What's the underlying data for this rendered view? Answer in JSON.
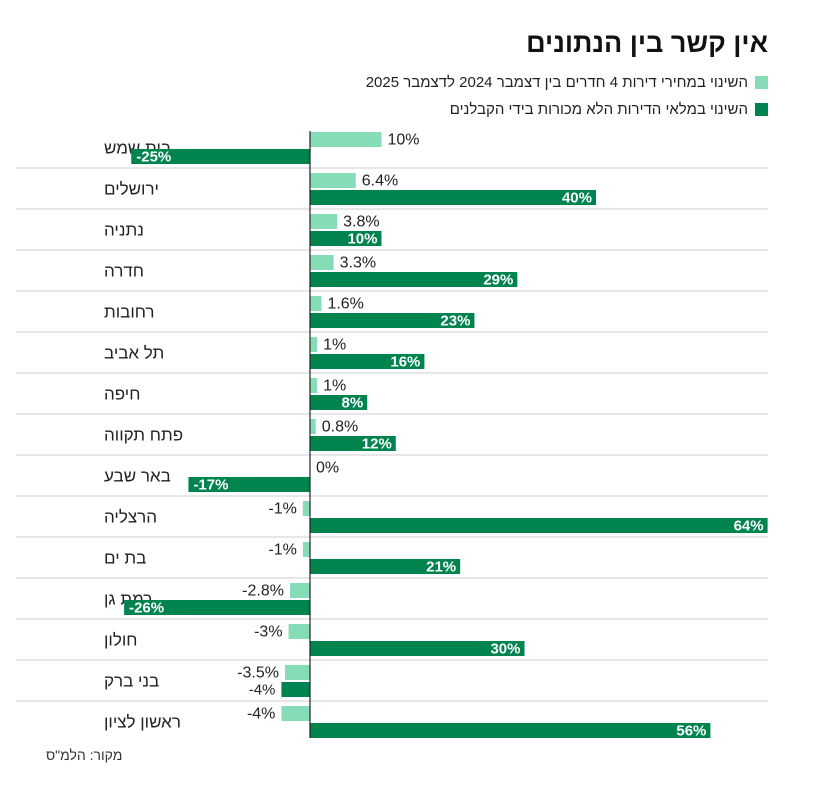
{
  "title": "אין קשר בין הנתונים",
  "legend": {
    "prices_label": "השינוי במחירי דירות 4 חדרים בין דצמבר 2024 לדצמבר 2025",
    "inventory_label": "השינוי במלאי הדירות הלא מכורות בידי הקבלנים"
  },
  "colors": {
    "prices": "#86DCB7",
    "inventory": "#00844F",
    "grid": "#CFCFCF",
    "axis": "#222222"
  },
  "source": "מקור: הלמ\"ס",
  "chart_data": {
    "type": "bar",
    "orientation": "horizontal",
    "categories": [
      "בית שמש",
      "ירושלים",
      "נתניה",
      "חדרה",
      "רחובות",
      "תל אביב",
      "חיפה",
      "פתח תקווה",
      "באר שבע",
      "הרצליה",
      "בת ים",
      "רמת גן",
      "חולון",
      "בני ברק",
      "ראשון לציון"
    ],
    "series": [
      {
        "name": "prices",
        "values": [
          10,
          6.4,
          3.8,
          3.3,
          1.6,
          1,
          1,
          0.8,
          0,
          -1,
          -1,
          -2.8,
          -3,
          -3.5,
          -4
        ],
        "labels": [
          "10%",
          "6.4%",
          "3.8%",
          "3.3%",
          "1.6%",
          "1%",
          "1%",
          "0.8%",
          "0%",
          "-1%",
          "-1%",
          "-2.8%",
          "-3%",
          "-3.5%",
          "-4%"
        ]
      },
      {
        "name": "inventory",
        "values": [
          -25,
          40,
          10,
          29,
          23,
          16,
          8,
          12,
          -17,
          64,
          21,
          -26,
          30,
          -4,
          56
        ],
        "labels": [
          "-25%",
          "40%",
          "10%",
          "29%",
          "23%",
          "16%",
          "8%",
          "12%",
          "-17%",
          "64%",
          "21%",
          "-26%",
          "30%",
          "-4%",
          "56%"
        ]
      }
    ],
    "xlim": [
      -28,
      66
    ],
    "value_unit": "%"
  }
}
